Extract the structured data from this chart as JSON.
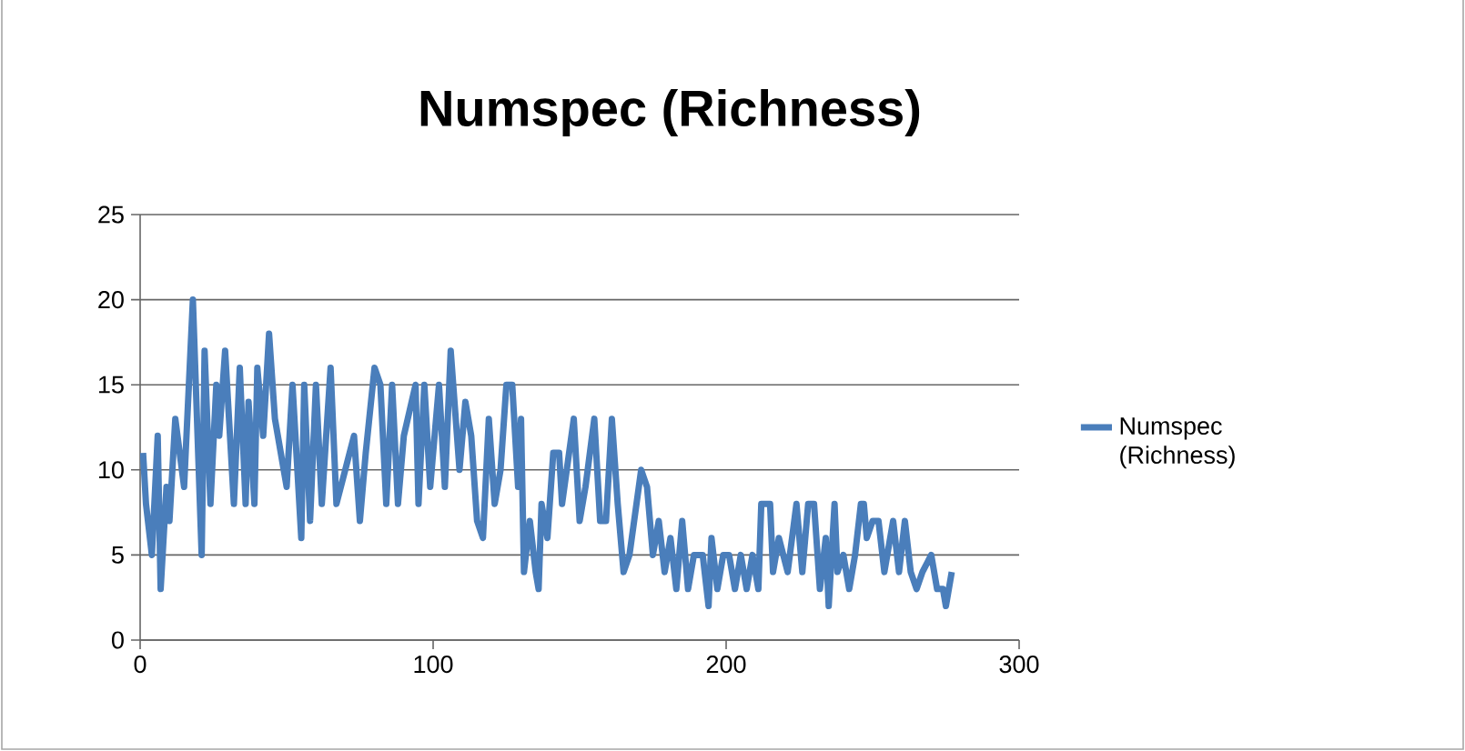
{
  "chart_data": {
    "type": "line",
    "title": "Numspec (Richness)",
    "x": [
      1,
      2,
      4,
      6,
      7,
      9,
      10,
      12,
      15,
      18,
      21,
      22,
      24,
      26,
      27,
      29,
      32,
      34,
      36,
      37,
      39,
      40,
      42,
      44,
      46,
      50,
      52,
      55,
      56,
      58,
      60,
      62,
      65,
      67,
      70,
      73,
      75,
      77,
      80,
      82,
      84,
      86,
      88,
      90,
      94,
      95,
      97,
      99,
      102,
      104,
      106,
      109,
      111,
      113,
      115,
      117,
      119,
      121,
      123,
      125,
      127,
      129,
      130,
      131,
      133,
      135,
      136,
      137,
      139,
      141,
      143,
      144,
      148,
      150,
      152,
      155,
      157,
      159,
      161,
      163,
      165,
      167,
      171,
      173,
      175,
      177,
      179,
      181,
      183,
      185,
      187,
      189,
      192,
      194,
      195,
      197,
      199,
      201,
      203,
      205,
      207,
      209,
      211,
      212,
      215,
      216,
      218,
      221,
      224,
      226,
      228,
      230,
      232,
      234,
      235,
      237,
      238,
      240,
      242,
      244,
      246,
      247,
      248,
      250,
      252,
      254,
      257,
      259,
      261,
      263,
      265,
      267,
      270,
      272,
      274,
      275,
      277
    ],
    "series": [
      {
        "name": "Numspec (Richness)",
        "color": "#4a7ebb",
        "values": [
          11,
          8,
          5,
          12,
          3,
          9,
          7,
          13,
          9,
          20,
          5,
          17,
          8,
          15,
          12,
          17,
          8,
          16,
          8,
          14,
          8,
          16,
          12,
          18,
          13,
          9,
          15,
          6,
          15,
          7,
          15,
          8,
          16,
          8,
          10,
          12,
          7,
          11,
          16,
          15,
          8,
          15,
          8,
          12,
          15,
          8,
          15,
          9,
          15,
          9,
          17,
          10,
          14,
          12,
          7,
          6,
          13,
          8,
          10,
          15,
          15,
          9,
          13,
          4,
          7,
          4,
          3,
          8,
          6,
          11,
          11,
          8,
          13,
          7,
          9,
          13,
          7,
          7,
          13,
          8,
          4,
          5,
          10,
          9,
          5,
          7,
          4,
          6,
          3,
          7,
          3,
          5,
          5,
          2,
          6,
          3,
          5,
          5,
          3,
          5,
          3,
          5,
          3,
          8,
          8,
          4,
          6,
          4,
          8,
          4,
          8,
          8,
          3,
          6,
          2,
          8,
          4,
          5,
          3,
          5,
          8,
          8,
          6,
          7,
          7,
          4,
          7,
          4,
          7,
          4,
          3,
          4,
          5,
          3,
          3,
          2,
          4
        ]
      }
    ],
    "xlim": [
      0,
      300
    ],
    "ylim": [
      0,
      25
    ],
    "xticks": [
      0,
      100,
      200,
      300
    ],
    "yticks": [
      0,
      5,
      10,
      15,
      20,
      25
    ],
    "grid": "y",
    "legend": "right",
    "line_style": "solid"
  }
}
